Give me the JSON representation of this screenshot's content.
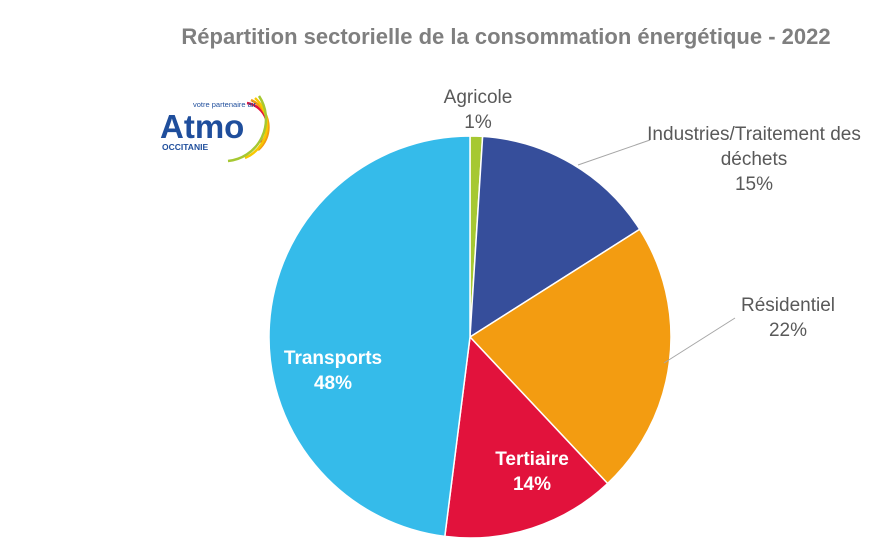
{
  "logo": {
    "name": "Atmo",
    "region": "OCCITANIE",
    "tagline": "votre partenaire air"
  },
  "chart_data": {
    "type": "pie",
    "title": "Répartition sectorielle de la consommation énergétique - 2022",
    "start": "12 o'clock",
    "direction": "clockwise",
    "slices": [
      {
        "name": "Agricole",
        "label_lines": [
          "Agricole"
        ],
        "value": 1,
        "value_label": "1%",
        "color": "#a6c832",
        "label_position": "outside"
      },
      {
        "name": "Industries/Traitement des déchets",
        "label_lines": [
          "Industries/Traitement des",
          "déchets"
        ],
        "value": 15,
        "value_label": "15%",
        "color": "#364e9b",
        "label_position": "outside"
      },
      {
        "name": "Résidentiel",
        "label_lines": [
          "Résidentiel"
        ],
        "value": 22,
        "value_label": "22%",
        "color": "#f39c11",
        "label_position": "outside"
      },
      {
        "name": "Tertiaire",
        "label_lines": [
          "Tertiaire"
        ],
        "value": 14,
        "value_label": "14%",
        "color": "#e2123c",
        "label_position": "inside"
      },
      {
        "name": "Transports",
        "label_lines": [
          "Transports"
        ],
        "value": 48,
        "value_label": "48%",
        "color": "#35bbea",
        "label_position": "inside"
      }
    ]
  }
}
